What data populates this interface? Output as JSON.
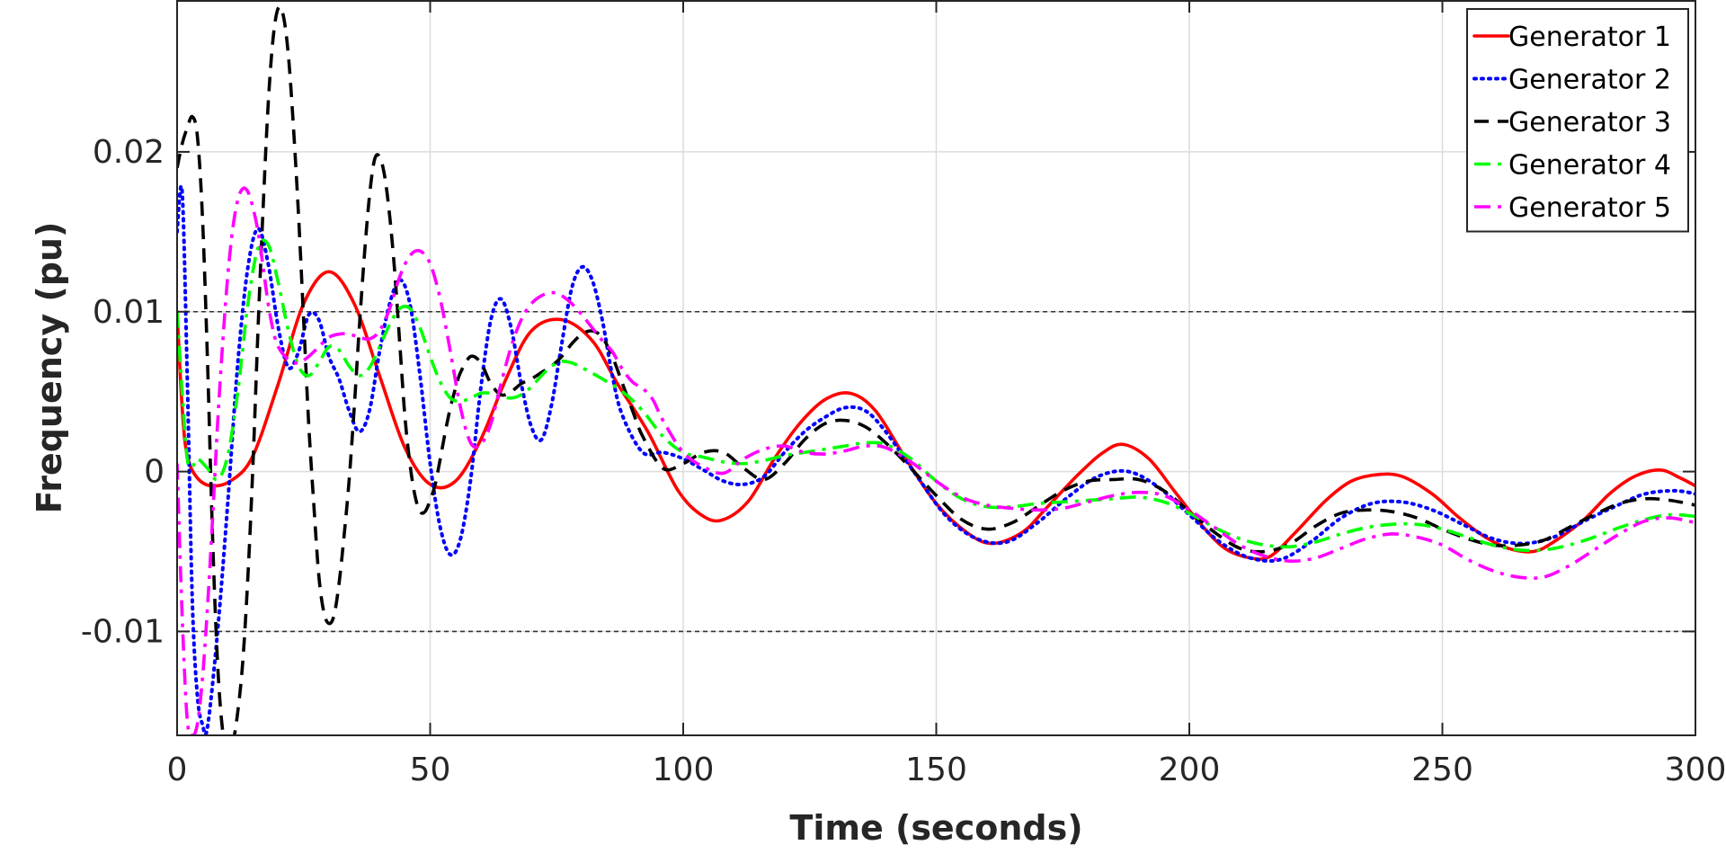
{
  "chart_data": {
    "type": "line",
    "title": "",
    "xlabel": "Time (seconds)",
    "ylabel": "Frequency (pu)",
    "xlim": [
      0,
      300
    ],
    "ylim": [
      -0.0165,
      0.0295
    ],
    "xticks": [
      0,
      50,
      100,
      150,
      200,
      250,
      300
    ],
    "xtick_labels": [
      "0",
      "50",
      "100",
      "150",
      "200",
      "250",
      "300"
    ],
    "yticks": [
      -0.01,
      0,
      0.01,
      0.02
    ],
    "ytick_labels": [
      "-0.01",
      "0",
      "0.01",
      "0.02"
    ],
    "grid": true,
    "reference_lines_y": [
      -0.01,
      0.01
    ],
    "legend": "top-right",
    "series": [
      {
        "name": "Generator 1",
        "color": "#ff0000",
        "dash": "solid",
        "x": [
          0,
          1,
          2,
          4,
          7,
          11,
          15,
          20,
          25,
          30,
          35,
          40,
          45,
          50,
          55,
          60,
          65,
          70,
          76,
          82,
          87,
          93,
          99,
          104,
          108,
          113,
          118,
          123,
          128,
          133,
          138,
          144,
          150,
          156,
          161,
          167,
          172,
          178,
          183,
          187,
          192,
          197,
          202,
          207,
          212,
          216,
          221,
          227,
          232,
          237,
          242,
          248,
          253,
          258,
          263,
          268,
          272,
          278,
          283,
          288,
          293,
          297,
          300
        ],
        "y": [
          0.01,
          0.004,
          0.001,
          -0.0004,
          -0.0009,
          -0.0005,
          0.001,
          0.0055,
          0.0105,
          0.0125,
          0.0105,
          0.006,
          0.0015,
          -0.0008,
          -0.0006,
          0.002,
          0.0058,
          0.0088,
          0.0095,
          0.0082,
          0.0055,
          0.0025,
          -0.0012,
          -0.0028,
          -0.003,
          -0.0018,
          0.0008,
          0.003,
          0.0045,
          0.0049,
          0.0038,
          0.0008,
          -0.002,
          -0.0038,
          -0.0045,
          -0.0038,
          -0.0022,
          -0.0002,
          0.0012,
          0.0017,
          0.0008,
          -0.0012,
          -0.0032,
          -0.0048,
          -0.0054,
          -0.0053,
          -0.0038,
          -0.0018,
          -0.0006,
          -0.0002,
          -0.0003,
          -0.0014,
          -0.0028,
          -0.004,
          -0.0048,
          -0.005,
          -0.0044,
          -0.003,
          -0.0014,
          -0.0003,
          0.0001,
          -0.0004,
          -0.0009
        ]
      },
      {
        "name": "Generator 2",
        "color": "#0000ff",
        "dash": "dotted",
        "x": [
          0,
          1,
          2,
          3,
          4,
          5,
          6,
          8,
          10,
          12,
          14,
          16,
          18,
          20,
          22,
          24,
          26,
          28,
          30,
          32,
          34,
          36,
          38,
          40,
          42,
          44,
          46,
          48,
          50,
          52,
          54,
          56,
          58,
          60,
          62,
          64,
          66,
          68,
          70,
          72,
          74,
          76,
          78,
          80,
          82,
          84,
          86,
          88,
          92,
          96,
          100,
          104,
          108,
          112,
          116,
          120,
          124,
          128,
          132,
          136,
          140,
          146,
          152,
          158,
          164,
          170,
          176,
          182,
          188,
          194,
          200,
          206,
          212,
          218,
          224,
          230,
          236,
          242,
          248,
          254,
          260,
          266,
          272,
          278,
          284,
          290,
          296,
          300
        ],
        "y": [
          0.015,
          0.0175,
          0.006,
          -0.008,
          -0.014,
          -0.0158,
          -0.016,
          -0.01,
          -0.002,
          0.0068,
          0.0128,
          0.0152,
          0.013,
          0.009,
          0.0065,
          0.0075,
          0.0098,
          0.0095,
          0.0072,
          0.0058,
          0.0038,
          0.0025,
          0.0038,
          0.0075,
          0.0105,
          0.012,
          0.0105,
          0.006,
          0.0005,
          -0.0035,
          -0.0052,
          -0.0042,
          -0.0005,
          0.0052,
          0.0095,
          0.0108,
          0.009,
          0.0055,
          0.0028,
          0.002,
          0.0042,
          0.008,
          0.0115,
          0.0128,
          0.012,
          0.0095,
          0.006,
          0.0035,
          0.0012,
          0.0012,
          0.0008,
          0.0001,
          -0.0006,
          -0.0008,
          -0.0003,
          0.0012,
          0.0025,
          0.0034,
          0.004,
          0.0038,
          0.0025,
          -0.0002,
          -0.0028,
          -0.0042,
          -0.0044,
          -0.0032,
          -0.0016,
          -0.0003,
          0.0,
          -0.001,
          -0.0027,
          -0.0044,
          -0.0054,
          -0.0055,
          -0.0044,
          -0.0029,
          -0.002,
          -0.0019,
          -0.0024,
          -0.0033,
          -0.0042,
          -0.0045,
          -0.0041,
          -0.0031,
          -0.0022,
          -0.0014,
          -0.0012,
          -0.0014
        ]
      },
      {
        "name": "Generator 3",
        "color": "#000000",
        "dash": "dashed",
        "x": [
          0,
          1,
          2,
          3,
          4,
          5,
          6,
          7,
          8,
          9,
          10,
          11,
          12,
          13,
          14,
          15,
          16,
          17,
          18,
          19,
          20,
          21,
          22,
          23,
          24,
          25,
          26,
          27,
          28,
          29,
          30,
          31,
          32,
          33,
          34,
          35,
          36,
          37,
          38,
          39,
          40,
          41,
          42,
          43,
          44,
          45,
          46,
          47,
          48,
          49,
          50,
          51,
          52,
          53,
          54,
          55,
          56,
          58,
          60,
          62,
          64,
          66,
          68,
          70,
          72,
          74,
          76,
          78,
          80,
          82,
          84,
          86,
          88,
          90,
          92,
          96,
          100,
          104,
          108,
          112,
          116,
          120,
          124,
          128,
          132,
          136,
          140,
          145,
          150,
          155,
          160,
          165,
          170,
          175,
          180,
          185,
          190,
          195,
          200,
          205,
          210,
          215,
          220,
          225,
          230,
          235,
          240,
          245,
          250,
          255,
          260,
          265,
          270,
          275,
          280,
          285,
          290,
          295,
          300
        ],
        "y": [
          0.019,
          0.0205,
          0.0215,
          0.0222,
          0.021,
          0.016,
          0.007,
          -0.004,
          -0.012,
          -0.0162,
          -0.0175,
          -0.017,
          -0.015,
          -0.0118,
          -0.0065,
          0.0005,
          0.009,
          0.0165,
          0.023,
          0.0272,
          0.029,
          0.0285,
          0.026,
          0.0215,
          0.016,
          0.0095,
          0.003,
          -0.002,
          -0.0065,
          -0.0088,
          -0.0095,
          -0.009,
          -0.007,
          -0.004,
          -0.0005,
          0.004,
          0.009,
          0.0135,
          0.0172,
          0.0195,
          0.0197,
          0.0185,
          0.016,
          0.0125,
          0.008,
          0.0035,
          0.0005,
          -0.0015,
          -0.0025,
          -0.0025,
          -0.0018,
          -0.0008,
          0.0008,
          0.0025,
          0.004,
          0.0052,
          0.0062,
          0.0072,
          0.0068,
          0.0055,
          0.0048,
          0.005,
          0.0055,
          0.0058,
          0.0062,
          0.0066,
          0.0072,
          0.008,
          0.0086,
          0.0088,
          0.0084,
          0.0072,
          0.0055,
          0.0038,
          0.0022,
          0.0002,
          0.0005,
          0.0012,
          0.0012,
          0.0002,
          -0.0005,
          0.0005,
          0.002,
          0.003,
          0.0032,
          0.0028,
          0.0018,
          0.0002,
          -0.0015,
          -0.003,
          -0.0036,
          -0.0032,
          -0.0022,
          -0.0012,
          -0.0006,
          -0.0005,
          -0.0005,
          -0.0012,
          -0.0025,
          -0.0038,
          -0.0048,
          -0.005,
          -0.0045,
          -0.0034,
          -0.0026,
          -0.0024,
          -0.0025,
          -0.0029,
          -0.0036,
          -0.0042,
          -0.0046,
          -0.0046,
          -0.0043,
          -0.0035,
          -0.0027,
          -0.002,
          -0.0017,
          -0.0018,
          -0.0021
        ]
      },
      {
        "name": "Generator 4",
        "color": "#00ff00",
        "dash": "dashdot",
        "x": [
          0,
          1,
          2,
          3,
          4,
          6,
          8,
          10,
          12,
          14,
          16,
          18,
          20,
          22,
          24,
          26,
          28,
          30,
          32,
          34,
          36,
          38,
          40,
          42,
          44,
          46,
          48,
          50,
          52,
          54,
          56,
          58,
          60,
          62,
          64,
          66,
          68,
          70,
          72,
          74,
          76,
          78,
          80,
          84,
          88,
          92,
          96,
          100,
          104,
          108,
          112,
          116,
          120,
          124,
          128,
          132,
          136,
          140,
          145,
          150,
          155,
          160,
          165,
          170,
          175,
          180,
          185,
          190,
          195,
          200,
          205,
          210,
          215,
          220,
          225,
          230,
          235,
          240,
          245,
          250,
          255,
          260,
          265,
          270,
          275,
          280,
          285,
          290,
          295,
          300
        ],
        "y": [
          0.01,
          0.005,
          0.0008,
          0.0003,
          0.0008,
          0.0002,
          -0.0005,
          0.001,
          0.005,
          0.0105,
          0.014,
          0.0142,
          0.0118,
          0.0088,
          0.0066,
          0.006,
          0.0068,
          0.0078,
          0.0076,
          0.0066,
          0.006,
          0.0065,
          0.0078,
          0.0092,
          0.0102,
          0.0102,
          0.009,
          0.0072,
          0.0056,
          0.0046,
          0.0044,
          0.0046,
          0.0049,
          0.0049,
          0.0047,
          0.0046,
          0.0048,
          0.0053,
          0.006,
          0.0066,
          0.0069,
          0.0068,
          0.0065,
          0.0058,
          0.005,
          0.0038,
          0.0022,
          0.0012,
          0.0009,
          0.0006,
          0.0005,
          0.0007,
          0.001,
          0.0012,
          0.0014,
          0.0016,
          0.0018,
          0.0017,
          0.0008,
          -0.0006,
          -0.0017,
          -0.0022,
          -0.0022,
          -0.002,
          -0.0019,
          -0.0018,
          -0.0017,
          -0.0016,
          -0.0019,
          -0.0026,
          -0.0035,
          -0.0042,
          -0.0046,
          -0.0047,
          -0.0044,
          -0.0039,
          -0.0035,
          -0.0033,
          -0.0033,
          -0.0036,
          -0.0041,
          -0.0046,
          -0.0049,
          -0.0049,
          -0.0046,
          -0.0041,
          -0.0035,
          -0.003,
          -0.0027,
          -0.0028
        ]
      },
      {
        "name": "Generator 5",
        "color": "#ff00ff",
        "dash": "dashdot",
        "x": [
          0,
          1,
          2,
          3,
          4,
          5,
          6,
          7,
          8,
          9,
          10,
          11,
          12,
          13,
          14,
          15,
          16,
          17,
          18,
          19,
          20,
          22,
          24,
          26,
          28,
          30,
          32,
          34,
          36,
          38,
          40,
          42,
          44,
          46,
          48,
          50,
          52,
          54,
          56,
          58,
          60,
          62,
          64,
          66,
          68,
          70,
          72,
          74,
          76,
          78,
          80,
          82,
          84,
          86,
          88,
          90,
          92,
          94,
          96,
          100,
          104,
          108,
          112,
          116,
          120,
          124,
          128,
          132,
          136,
          140,
          145,
          150,
          155,
          160,
          165,
          170,
          175,
          180,
          185,
          190,
          195,
          200,
          205,
          210,
          215,
          220,
          225,
          230,
          235,
          240,
          245,
          250,
          255,
          260,
          265,
          270,
          275,
          280,
          285,
          290,
          295,
          300
        ],
        "y": [
          0.0005,
          -0.009,
          -0.0155,
          -0.0165,
          -0.0158,
          -0.013,
          -0.0085,
          -0.003,
          0.003,
          0.008,
          0.0122,
          0.0152,
          0.017,
          0.0177,
          0.0175,
          0.0165,
          0.015,
          0.0128,
          0.0105,
          0.0088,
          0.0078,
          0.007,
          0.0068,
          0.0072,
          0.0078,
          0.0084,
          0.0086,
          0.0086,
          0.0084,
          0.0083,
          0.0088,
          0.0102,
          0.0122,
          0.0135,
          0.0138,
          0.013,
          0.0108,
          0.0075,
          0.004,
          0.0018,
          0.0017,
          0.003,
          0.0055,
          0.0078,
          0.0095,
          0.0105,
          0.011,
          0.0112,
          0.011,
          0.0105,
          0.0098,
          0.009,
          0.0082,
          0.0075,
          0.0064,
          0.0056,
          0.0052,
          0.0045,
          0.0032,
          0.0012,
          0.0003,
          -0.0001,
          0.0008,
          0.0014,
          0.0016,
          0.0012,
          0.0011,
          0.0013,
          0.0016,
          0.0015,
          0.0006,
          -0.0006,
          -0.0016,
          -0.0021,
          -0.0023,
          -0.0024,
          -0.0023,
          -0.0019,
          -0.0015,
          -0.0013,
          -0.0015,
          -0.0024,
          -0.0035,
          -0.0046,
          -0.0053,
          -0.0056,
          -0.0054,
          -0.0048,
          -0.0042,
          -0.0039,
          -0.0041,
          -0.0046,
          -0.0055,
          -0.0062,
          -0.0066,
          -0.0066,
          -0.0059,
          -0.0049,
          -0.0039,
          -0.0031,
          -0.0029,
          -0.0032
        ]
      }
    ]
  }
}
